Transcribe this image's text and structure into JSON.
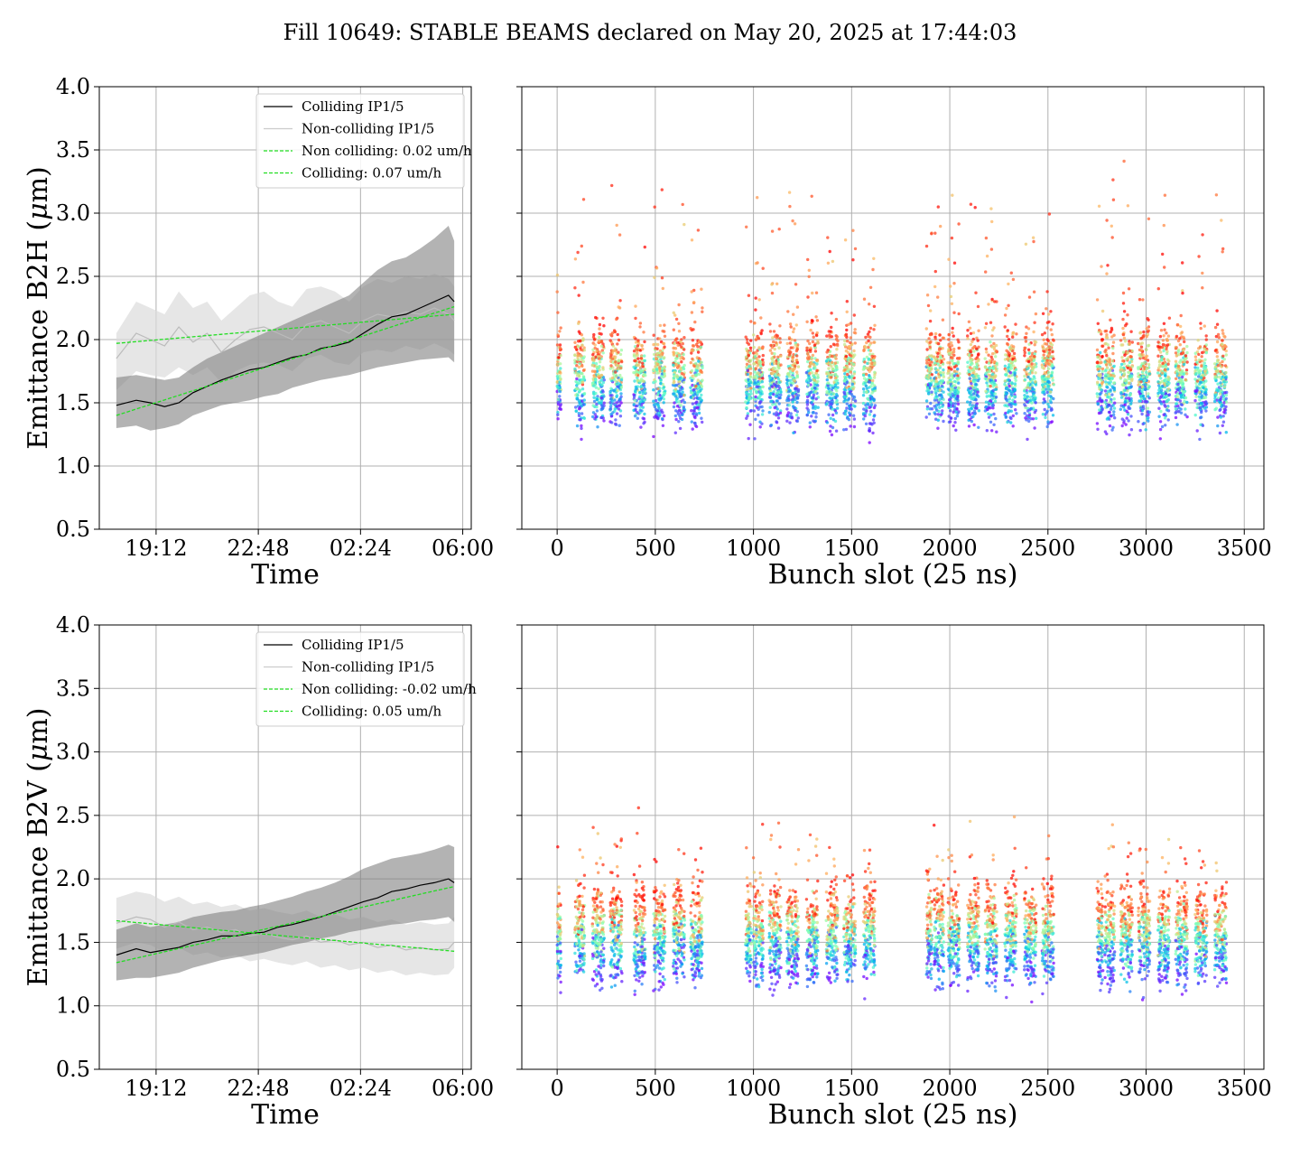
{
  "figure_title": "Fill 10649: STABLE BEAMS declared on May 20, 2025 at 17:44:03",
  "colors": {
    "colliding": "#000000",
    "noncolliding": "#bbbbbb",
    "colliding_band": "#808080",
    "noncolliding_band": "#dcdcdc",
    "fit": "#22dd22",
    "grid": "#b0b0b0",
    "rainbow_low": "#8000ff",
    "rainbow_high": "#ff0000"
  },
  "chart_data": [
    {
      "type": "line",
      "title": "",
      "xlabel": "Time",
      "ylabel_pre": "Emittance B2H (",
      "ylabel_mu": "μ",
      "ylabel_post": "m)",
      "x_ticks": [
        "19:12",
        "22:48",
        "02:24",
        "06:00"
      ],
      "x_tick_hours": [
        1.2,
        4.8,
        8.4,
        12.0
      ],
      "xlim_hours": [
        -0.8,
        12.3
      ],
      "ylim": [
        0.5,
        4.0
      ],
      "y_ticks": [
        "0.5",
        "1.0",
        "1.5",
        "2.0",
        "2.5",
        "3.0",
        "3.5",
        "4.0"
      ],
      "y_tick_values": [
        0.5,
        1.0,
        1.5,
        2.0,
        2.5,
        3.0,
        3.5,
        4.0
      ],
      "grid": true,
      "legend_position": "top-right",
      "legend": [
        "Colliding IP1/5",
        "Non-colliding IP1/5",
        "Non colliding: 0.02 um/h",
        "Colliding: 0.07 um/h"
      ],
      "series": [
        {
          "name": "Colliding IP1/5",
          "x_hours": [
            -0.2,
            0.5,
            1.0,
            1.5,
            2.0,
            2.5,
            3.0,
            3.5,
            4.0,
            4.5,
            5.0,
            5.5,
            6.0,
            6.5,
            7.0,
            7.5,
            8.0,
            8.5,
            9.0,
            9.5,
            10.0,
            10.5,
            11.0,
            11.5,
            11.7
          ],
          "values": [
            1.48,
            1.52,
            1.5,
            1.47,
            1.5,
            1.58,
            1.63,
            1.68,
            1.72,
            1.76,
            1.78,
            1.82,
            1.86,
            1.88,
            1.93,
            1.95,
            1.98,
            2.05,
            2.12,
            2.18,
            2.2,
            2.25,
            2.3,
            2.35,
            2.3
          ],
          "band_lower": [
            1.3,
            1.32,
            1.28,
            1.3,
            1.33,
            1.4,
            1.44,
            1.48,
            1.5,
            1.52,
            1.55,
            1.57,
            1.62,
            1.65,
            1.68,
            1.7,
            1.72,
            1.75,
            1.78,
            1.8,
            1.82,
            1.84,
            1.85,
            1.86,
            1.82
          ],
          "band_upper": [
            1.7,
            1.72,
            1.7,
            1.68,
            1.7,
            1.78,
            1.85,
            1.9,
            1.95,
            2.0,
            2.05,
            2.1,
            2.15,
            2.2,
            2.25,
            2.3,
            2.35,
            2.45,
            2.55,
            2.62,
            2.65,
            2.72,
            2.8,
            2.9,
            2.78
          ]
        },
        {
          "name": "Non-colliding IP1/5",
          "x_hours": [
            -0.2,
            0.5,
            1.0,
            1.5,
            2.0,
            2.5,
            3.0,
            3.5,
            4.0,
            4.5,
            5.0,
            5.5,
            6.0,
            6.5,
            7.0,
            7.5,
            8.0,
            8.5,
            9.0,
            9.5,
            10.0,
            10.5,
            11.0,
            11.5,
            11.7
          ],
          "values": [
            1.85,
            2.05,
            2.0,
            1.95,
            2.1,
            1.98,
            2.05,
            1.9,
            2.0,
            2.08,
            2.1,
            2.05,
            2.0,
            2.12,
            2.15,
            2.1,
            2.05,
            2.15,
            2.2,
            2.18,
            2.22,
            2.2,
            2.25,
            2.2,
            2.15
          ],
          "band_lower": [
            1.6,
            1.75,
            1.72,
            1.7,
            1.78,
            1.72,
            1.78,
            1.66,
            1.75,
            1.8,
            1.82,
            1.8,
            1.75,
            1.85,
            1.88,
            1.82,
            1.8,
            1.9,
            1.92,
            1.9,
            1.95,
            1.92,
            1.97,
            1.92,
            1.88
          ],
          "band_upper": [
            2.05,
            2.3,
            2.25,
            2.2,
            2.38,
            2.25,
            2.3,
            2.15,
            2.25,
            2.35,
            2.38,
            2.3,
            2.26,
            2.4,
            2.42,
            2.38,
            2.3,
            2.42,
            2.48,
            2.45,
            2.5,
            2.48,
            2.52,
            2.48,
            2.42
          ]
        },
        {
          "name": "Non colliding: 0.02 um/h",
          "x_hours": [
            -0.2,
            11.7
          ],
          "values": [
            1.97,
            2.2
          ]
        },
        {
          "name": "Colliding: 0.07 um/h",
          "x_hours": [
            -0.2,
            11.7
          ],
          "values": [
            1.4,
            2.26
          ]
        }
      ]
    },
    {
      "type": "scatter",
      "title": "",
      "xlabel": "Bunch slot (25 ns)",
      "ylabel": "",
      "xlim": [
        -180,
        3600
      ],
      "ylim": [
        0.5,
        4.0
      ],
      "x_ticks": [
        "0",
        "500",
        "1000",
        "1500",
        "2000",
        "2500",
        "3000",
        "3500"
      ],
      "x_tick_values": [
        0,
        500,
        1000,
        1500,
        2000,
        2500,
        3000,
        3500
      ],
      "y_tick_values": [
        0.5,
        1.0,
        1.5,
        2.0,
        2.5,
        3.0,
        3.5,
        4.0
      ],
      "y_tick_labels_shown": false,
      "grid": true,
      "color_scale": "rainbow by time (violet = early, red = late)",
      "bunch_trains": [
        [
          0,
          20
        ],
        [
          90,
          140
        ],
        [
          180,
          240
        ],
        [
          270,
          330
        ],
        [
          390,
          450
        ],
        [
          490,
          550
        ],
        [
          590,
          650
        ],
        [
          680,
          740
        ],
        [
          960,
          990
        ],
        [
          1000,
          1050
        ],
        [
          1080,
          1140
        ],
        [
          1170,
          1230
        ],
        [
          1270,
          1330
        ],
        [
          1370,
          1430
        ],
        [
          1460,
          1520
        ],
        [
          1560,
          1620
        ],
        [
          1880,
          1910
        ],
        [
          1920,
          1970
        ],
        [
          1990,
          2050
        ],
        [
          2090,
          2150
        ],
        [
          2180,
          2240
        ],
        [
          2280,
          2340
        ],
        [
          2380,
          2440
        ],
        [
          2470,
          2530
        ],
        [
          2750,
          2780
        ],
        [
          2790,
          2840
        ],
        [
          2870,
          2930
        ],
        [
          2960,
          3020
        ],
        [
          3060,
          3120
        ],
        [
          3150,
          3210
        ],
        [
          3250,
          3310
        ],
        [
          3350,
          3410
        ]
      ],
      "emittance_start": 1.45,
      "emittance_end": 1.95,
      "tail_max": 3.5
    },
    {
      "type": "line",
      "title": "",
      "xlabel": "Time",
      "ylabel_pre": "Emittance B2V (",
      "ylabel_mu": "μ",
      "ylabel_post": "m)",
      "x_ticks": [
        "19:12",
        "22:48",
        "02:24",
        "06:00"
      ],
      "x_tick_hours": [
        1.2,
        4.8,
        8.4,
        12.0
      ],
      "xlim_hours": [
        -0.8,
        12.3
      ],
      "ylim": [
        0.5,
        4.0
      ],
      "y_ticks": [
        "0.5",
        "1.0",
        "1.5",
        "2.0",
        "2.5",
        "3.0",
        "3.5",
        "4.0"
      ],
      "y_tick_values": [
        0.5,
        1.0,
        1.5,
        2.0,
        2.5,
        3.0,
        3.5,
        4.0
      ],
      "grid": true,
      "legend_position": "top-right",
      "legend": [
        "Colliding IP1/5",
        "Non-colliding IP1/5",
        "Non colliding: -0.02 um/h",
        "Colliding: 0.05 um/h"
      ],
      "series": [
        {
          "name": "Colliding IP1/5",
          "x_hours": [
            -0.2,
            0.5,
            1.0,
            1.5,
            2.0,
            2.5,
            3.0,
            3.5,
            4.0,
            4.5,
            5.0,
            5.5,
            6.0,
            6.5,
            7.0,
            7.5,
            8.0,
            8.5,
            9.0,
            9.5,
            10.0,
            10.5,
            11.0,
            11.5,
            11.7
          ],
          "values": [
            1.4,
            1.45,
            1.42,
            1.44,
            1.46,
            1.5,
            1.52,
            1.55,
            1.55,
            1.57,
            1.58,
            1.62,
            1.64,
            1.67,
            1.7,
            1.74,
            1.78,
            1.82,
            1.85,
            1.9,
            1.92,
            1.95,
            1.97,
            2.0,
            1.97
          ],
          "band_lower": [
            1.2,
            1.22,
            1.22,
            1.24,
            1.26,
            1.3,
            1.33,
            1.36,
            1.38,
            1.4,
            1.42,
            1.45,
            1.48,
            1.5,
            1.53,
            1.55,
            1.58,
            1.6,
            1.62,
            1.64,
            1.65,
            1.67,
            1.68,
            1.7,
            1.66
          ],
          "band_upper": [
            1.6,
            1.65,
            1.62,
            1.64,
            1.66,
            1.7,
            1.72,
            1.74,
            1.75,
            1.78,
            1.8,
            1.83,
            1.86,
            1.9,
            1.93,
            1.97,
            2.02,
            2.08,
            2.12,
            2.16,
            2.18,
            2.2,
            2.23,
            2.27,
            2.25
          ]
        },
        {
          "name": "Non-colliding IP1/5",
          "x_hours": [
            -0.2,
            0.5,
            1.0,
            1.5,
            2.0,
            2.5,
            3.0,
            3.5,
            4.0,
            4.5,
            5.0,
            5.5,
            6.0,
            6.5,
            7.0,
            7.5,
            8.0,
            8.5,
            9.0,
            9.5,
            10.0,
            10.5,
            11.0,
            11.5,
            11.7
          ],
          "values": [
            1.65,
            1.7,
            1.68,
            1.62,
            1.66,
            1.6,
            1.62,
            1.58,
            1.6,
            1.55,
            1.57,
            1.54,
            1.52,
            1.55,
            1.5,
            1.52,
            1.48,
            1.5,
            1.46,
            1.48,
            1.44,
            1.46,
            1.44,
            1.45,
            1.5
          ],
          "band_lower": [
            1.45,
            1.5,
            1.48,
            1.42,
            1.46,
            1.4,
            1.42,
            1.38,
            1.4,
            1.35,
            1.37,
            1.34,
            1.32,
            1.35,
            1.3,
            1.32,
            1.28,
            1.3,
            1.26,
            1.28,
            1.24,
            1.26,
            1.24,
            1.25,
            1.3
          ],
          "band_upper": [
            1.85,
            1.9,
            1.88,
            1.82,
            1.86,
            1.8,
            1.82,
            1.78,
            1.8,
            1.75,
            1.77,
            1.74,
            1.72,
            1.75,
            1.7,
            1.72,
            1.68,
            1.7,
            1.66,
            1.68,
            1.64,
            1.66,
            1.64,
            1.65,
            1.7
          ]
        },
        {
          "name": "Non colliding: -0.02 um/h",
          "x_hours": [
            -0.2,
            11.7
          ],
          "values": [
            1.67,
            1.43
          ]
        },
        {
          "name": "Colliding: 0.05 um/h",
          "x_hours": [
            -0.2,
            11.7
          ],
          "values": [
            1.34,
            1.94
          ]
        }
      ]
    },
    {
      "type": "scatter",
      "title": "",
      "xlabel": "Bunch slot (25 ns)",
      "ylabel": "",
      "xlim": [
        -180,
        3600
      ],
      "ylim": [
        0.5,
        4.0
      ],
      "x_ticks": [
        "0",
        "500",
        "1000",
        "1500",
        "2000",
        "2500",
        "3000",
        "3500"
      ],
      "x_tick_values": [
        0,
        500,
        1000,
        1500,
        2000,
        2500,
        3000,
        3500
      ],
      "y_tick_values": [
        0.5,
        1.0,
        1.5,
        2.0,
        2.5,
        3.0,
        3.5,
        4.0
      ],
      "y_tick_labels_shown": false,
      "grid": true,
      "color_scale": "rainbow by time (violet = early, red = late)",
      "bunch_trains": [
        [
          0,
          20
        ],
        [
          90,
          140
        ],
        [
          180,
          240
        ],
        [
          270,
          330
        ],
        [
          390,
          450
        ],
        [
          490,
          550
        ],
        [
          590,
          650
        ],
        [
          680,
          740
        ],
        [
          960,
          990
        ],
        [
          1000,
          1050
        ],
        [
          1080,
          1140
        ],
        [
          1170,
          1230
        ],
        [
          1270,
          1330
        ],
        [
          1370,
          1430
        ],
        [
          1460,
          1520
        ],
        [
          1560,
          1620
        ],
        [
          1880,
          1910
        ],
        [
          1920,
          1970
        ],
        [
          1990,
          2050
        ],
        [
          2090,
          2150
        ],
        [
          2180,
          2240
        ],
        [
          2280,
          2340
        ],
        [
          2380,
          2440
        ],
        [
          2470,
          2530
        ],
        [
          2750,
          2780
        ],
        [
          2790,
          2840
        ],
        [
          2870,
          2930
        ],
        [
          2960,
          3020
        ],
        [
          3060,
          3120
        ],
        [
          3150,
          3210
        ],
        [
          3250,
          3310
        ],
        [
          3350,
          3410
        ]
      ],
      "emittance_start": 1.3,
      "emittance_end": 1.8,
      "tail_max": 2.55
    }
  ]
}
